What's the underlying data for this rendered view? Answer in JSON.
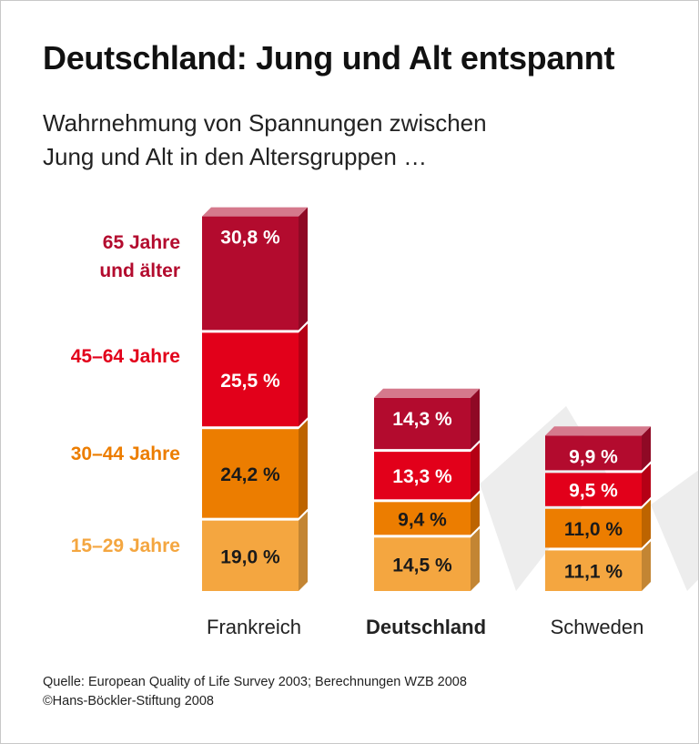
{
  "title": "Deutschland: Jung und Alt entspannt",
  "subtitle_line1": "Wahrnehmung von Spannungen zwischen",
  "subtitle_line2": "Jung und Alt in den Altersgruppen …",
  "source": "Quelle: European Quality of Life Survey 2003; Berechnungen WZB 2008",
  "copyright": "©Hans-Böckler-Stiftung 2008",
  "chart_data": {
    "type": "bar",
    "stacked": true,
    "style": "3d",
    "categories": [
      "Frankreich",
      "Deutschland",
      "Schweden"
    ],
    "highlighted_category": "Deutschland",
    "series": [
      {
        "name": "15–29 Jahre",
        "values": [
          19.0,
          14.5,
          11.1
        ],
        "labels": [
          "19,0 %",
          "14,5 %",
          "11,1 %"
        ],
        "color": "#f4a640"
      },
      {
        "name": "30–44 Jahre",
        "values": [
          24.2,
          9.4,
          11.0
        ],
        "labels": [
          "24,2 %",
          "9,4 %",
          "11,0 %"
        ],
        "color": "#ec7d00"
      },
      {
        "name": "45–64 Jahre",
        "values": [
          25.5,
          13.3,
          9.5
        ],
        "labels": [
          "25,5 %",
          "13,3 %",
          "9,5 %"
        ],
        "color": "#e2001a"
      },
      {
        "name": "65 Jahre und älter",
        "name_lines": [
          "65 Jahre",
          "und älter"
        ],
        "values": [
          30.8,
          14.3,
          9.9
        ],
        "labels": [
          "30,8 %",
          "14,3 %",
          "9,9 %"
        ],
        "color": "#b30b2e"
      }
    ],
    "legend_colors": [
      "#f4a640",
      "#ec7d00",
      "#e2001a",
      "#b30b2e"
    ],
    "value_label_colors": [
      "#1a1a1a",
      "#1a1a1a",
      "#ffffff",
      "#ffffff"
    ],
    "unit": "%",
    "legend_position": "left",
    "grid": false
  }
}
